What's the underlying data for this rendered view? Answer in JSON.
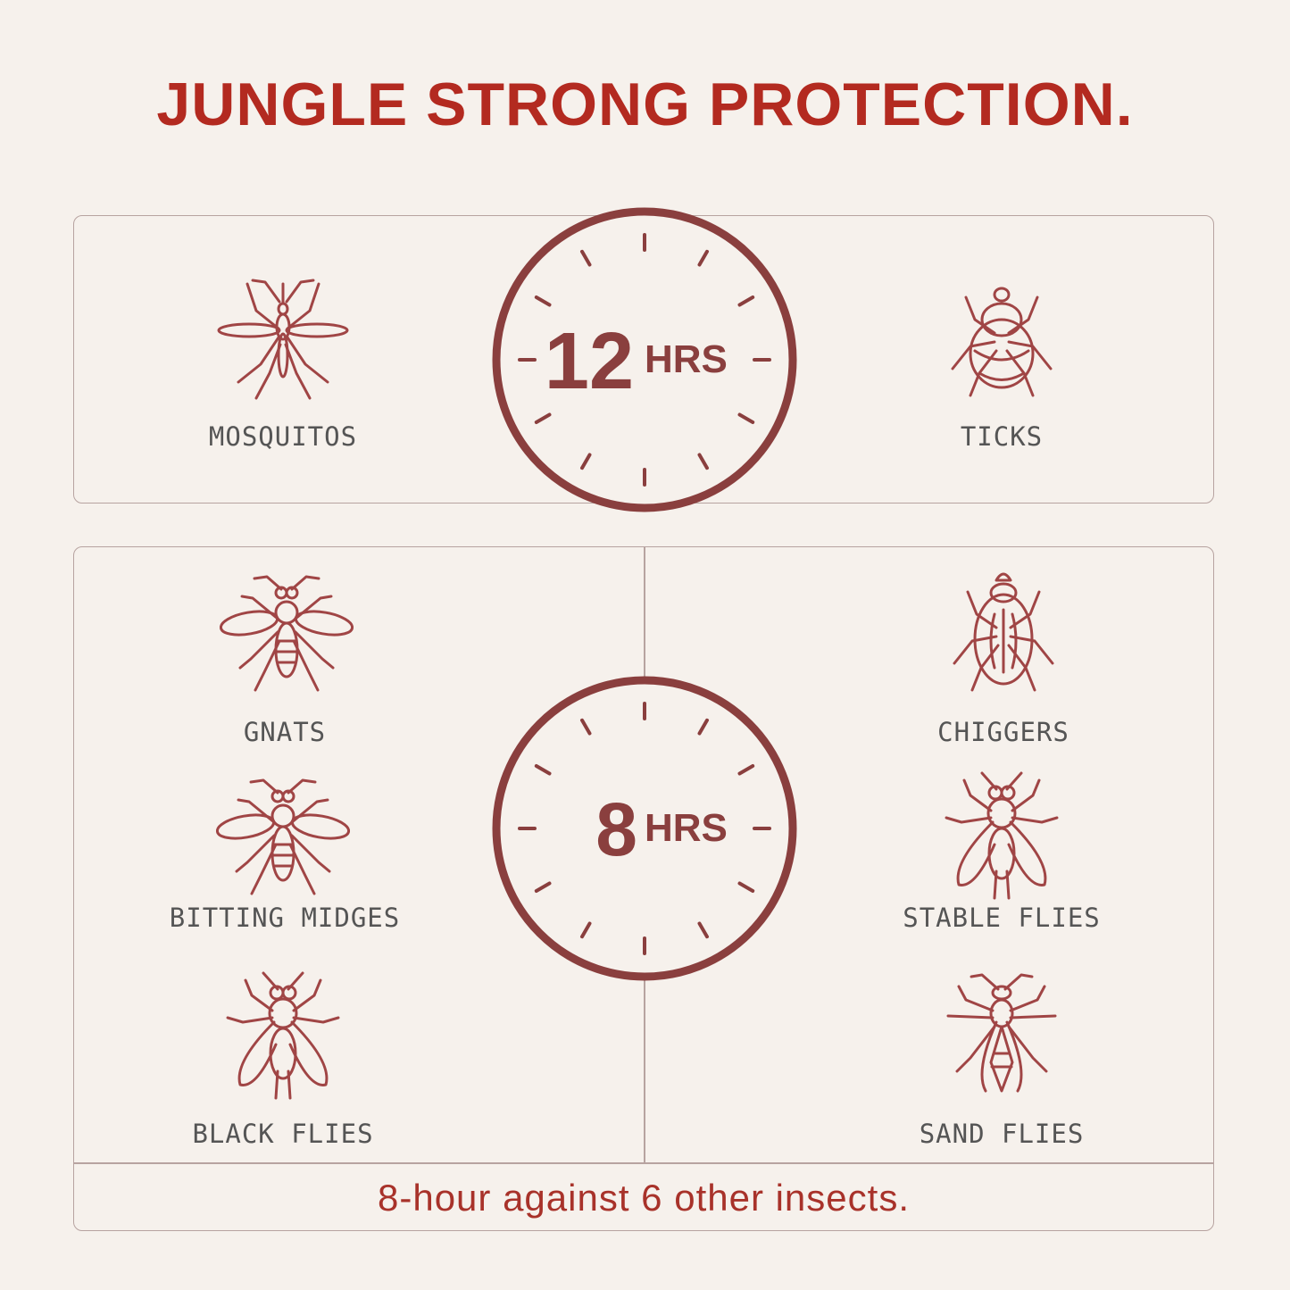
{
  "title": "JUNGLE STRONG PROTECTION.",
  "colors": {
    "background": "#f6f1ec",
    "title": "#b32a20",
    "clock": "#8a3f3e",
    "icon": "#a04545",
    "label": "#555555",
    "footer": "#a8322a"
  },
  "top_panel": {
    "clock": {
      "number": "12",
      "unit": "HRS"
    },
    "insects": [
      {
        "label": "MOSQUITOS",
        "icon": "mosquito-icon"
      },
      {
        "label": "TICKS",
        "icon": "tick-icon"
      }
    ]
  },
  "bottom_panel": {
    "clock": {
      "number": "8",
      "unit": "HRS"
    },
    "insects": [
      {
        "label": "GNATS",
        "icon": "gnat-icon"
      },
      {
        "label": "CHIGGERS",
        "icon": "chigger-icon"
      },
      {
        "label": "BITTING MIDGES",
        "icon": "midge-icon"
      },
      {
        "label": "STABLE FLIES",
        "icon": "stable-fly-icon"
      },
      {
        "label": "BLACK FLIES",
        "icon": "black-fly-icon"
      },
      {
        "label": "SAND FLIES",
        "icon": "sand-fly-icon"
      }
    ],
    "footer": "8-hour against 6 other insects."
  }
}
